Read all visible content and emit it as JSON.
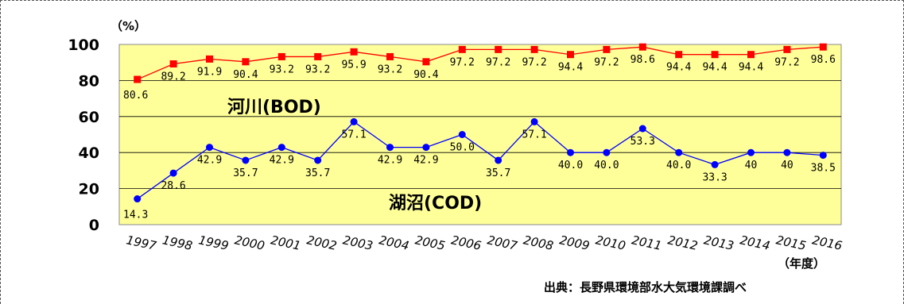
{
  "chart_data": {
    "type": "line",
    "x": [
      "1997",
      "1998",
      "1999",
      "2000",
      "2001",
      "2002",
      "2003",
      "2004",
      "2005",
      "2006",
      "2007",
      "2008",
      "2009",
      "2010",
      "2011",
      "2012",
      "2013",
      "2014",
      "2015",
      "2016"
    ],
    "ylim": [
      0,
      100
    ],
    "yticks": [
      "0",
      "20",
      "40",
      "60",
      "80",
      "100"
    ],
    "grid": true,
    "plot_background": "#ffff99",
    "unit_label": "（%）",
    "xlabel": "（年度）",
    "source": "出典：長野県環境部水大気環境課調べ",
    "series": [
      {
        "name": "河川(BOD)",
        "color": "#ff0000",
        "marker": "square",
        "values": [
          80.6,
          89.2,
          91.9,
          90.4,
          93.2,
          93.2,
          95.9,
          93.2,
          90.4,
          97.2,
          97.2,
          97.2,
          94.4,
          97.2,
          98.6,
          94.4,
          94.4,
          94.4,
          97.2,
          98.6
        ],
        "labels": [
          "80.6",
          "89.2",
          "91.9",
          "90.4",
          "93.2",
          "93.2",
          "95.9",
          "93.2",
          "90.4",
          "97.2",
          "97.2",
          "97.2",
          "94.4",
          "97.2",
          "98.6",
          "94.4",
          "94.4",
          "94.4",
          "97.2",
          "98.6"
        ]
      },
      {
        "name": "湖沼(COD)",
        "color": "#0000ff",
        "marker": "circle",
        "values": [
          14.3,
          28.6,
          42.9,
          35.7,
          42.9,
          35.7,
          57.1,
          42.9,
          42.9,
          50.0,
          35.7,
          57.1,
          40.0,
          40.0,
          53.3,
          40.0,
          33.3,
          40,
          40,
          38.5
        ],
        "labels": [
          "14.3",
          "28.6",
          "42.9",
          "35.7",
          "42.9",
          "35.7",
          "57.1",
          "42.9",
          "42.9",
          "50.0",
          "35.7",
          "57.1",
          "40.0",
          "40.0",
          "53.3",
          "40.0",
          "33.3",
          "40",
          "40",
          "38.5"
        ]
      }
    ]
  }
}
